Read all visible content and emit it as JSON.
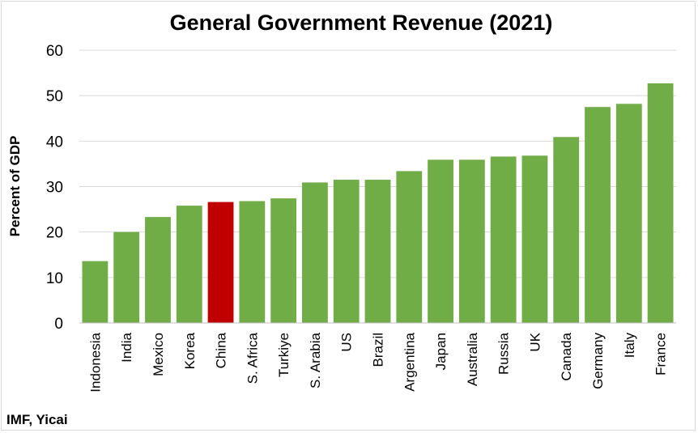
{
  "chart_data": {
    "type": "bar",
    "title": "General Government Revenue (2021)",
    "ylabel": "Percent of GDP",
    "xlabel": "",
    "source": "IMF, Yicai",
    "ylim": [
      0,
      60
    ],
    "yticks": [
      0,
      10,
      20,
      30,
      40,
      50,
      60
    ],
    "grid": true,
    "legend": "none",
    "categories": [
      "Indonesia",
      "India",
      "Mexico",
      "Korea",
      "China",
      "S. Africa",
      "Turkiye",
      "S. Arabia",
      "US",
      "Brazil",
      "Argentina",
      "Japan",
      "Australia",
      "Russia",
      "UK",
      "Canada",
      "Germany",
      "Italy",
      "France"
    ],
    "values": [
      13.6,
      20.0,
      23.3,
      25.8,
      26.6,
      26.8,
      27.4,
      30.9,
      31.5,
      31.5,
      33.4,
      35.9,
      35.9,
      36.6,
      36.8,
      40.9,
      47.5,
      48.2,
      52.7
    ],
    "colors": {
      "default": "#70ad47",
      "highlight": "#c00000",
      "highlight_category": "China",
      "grid": "#d9d9d9",
      "axis": "#bfbfbf",
      "text": "#000000"
    }
  }
}
